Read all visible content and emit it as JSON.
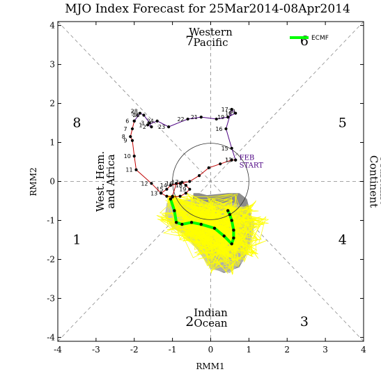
{
  "chart_data": {
    "type": "line",
    "title": "MJO Index Forecast for 25Mar2014-08Apr2014",
    "xlabel": "RMM1",
    "ylabel": "RMM2",
    "xlim": [
      -4,
      4
    ],
    "ylim": [
      -4.1,
      4.1
    ],
    "x_ticks": [
      "-4",
      "-3",
      "-2",
      "-1",
      "0",
      "1",
      "2",
      "3",
      "4"
    ],
    "y_ticks": [
      "-4",
      "-3",
      "-2",
      "-1",
      "0",
      "1",
      "2",
      "3",
      "4"
    ],
    "phases": [
      {
        "label": "1",
        "x": -3.5,
        "y": -1.5
      },
      {
        "label": "2",
        "x": -0.55,
        "y": -3.6
      },
      {
        "label": "3",
        "x": 2.45,
        "y": -3.6
      },
      {
        "label": "4",
        "x": 3.45,
        "y": -1.5
      },
      {
        "label": "5",
        "x": 3.45,
        "y": 1.5
      },
      {
        "label": "6",
        "x": 2.45,
        "y": 3.6
      },
      {
        "label": "7",
        "x": -0.55,
        "y": 3.6
      },
      {
        "label": "8",
        "x": -3.5,
        "y": 1.5
      }
    ],
    "regions": [
      {
        "lines": [
          "Western",
          "Pacific"
        ],
        "x": 0.0,
        "y": 3.7,
        "rotate": 0
      },
      {
        "lines": [
          "Indian",
          "Ocean"
        ],
        "x": 0.0,
        "y": -3.5,
        "rotate": 0
      },
      {
        "lines": [
          "West. Hem.",
          "and Africa"
        ],
        "x": -2.75,
        "y": 0.0,
        "rotate": -90
      },
      {
        "lines": [
          "Maritime",
          "Continent"
        ],
        "x": 4.4,
        "y": 0.0,
        "rotate": 90
      }
    ],
    "observed_segments": [
      {
        "color": "#c00000",
        "points": [
          {
            "x": 0.65,
            "y": 0.55,
            "label": "13"
          },
          {
            "x": 0.55,
            "y": 0.55
          },
          {
            "x": 0.25,
            "y": 0.45
          },
          {
            "x": -0.05,
            "y": 0.35
          },
          {
            "x": -0.3,
            "y": 0.15
          },
          {
            "x": -0.55,
            "y": 0.0
          },
          {
            "x": -0.8,
            "y": -0.05
          },
          {
            "x": -1.05,
            "y": -0.1,
            "label": "14"
          },
          {
            "x": -1.15,
            "y": -0.2,
            "label": "15"
          },
          {
            "x": -1.3,
            "y": -0.3,
            "label": "13"
          },
          {
            "x": -1.15,
            "y": -0.38
          },
          {
            "x": -1.0,
            "y": -0.4
          },
          {
            "x": -0.8,
            "y": -0.38
          },
          {
            "x": -0.65,
            "y": -0.3
          },
          {
            "x": -0.55,
            "y": -0.2,
            "label": "19"
          },
          {
            "x": -0.65,
            "y": -0.1,
            "label": "18"
          },
          {
            "x": -0.75,
            "y": -0.02,
            "label": "17"
          },
          {
            "x": -0.9,
            "y": -0.05,
            "label": "16"
          },
          {
            "x": -1.0,
            "y": -0.38
          }
        ]
      },
      {
        "color": "#c00000",
        "points": [
          {
            "x": -1.3,
            "y": -0.3
          },
          {
            "x": -1.55,
            "y": -0.05,
            "label": "12"
          },
          {
            "x": -1.95,
            "y": 0.3,
            "label": "11"
          },
          {
            "x": -2.0,
            "y": 0.65,
            "label": "10"
          },
          {
            "x": -2.05,
            "y": 1.05,
            "label": "9"
          },
          {
            "x": -2.1,
            "y": 1.15,
            "label": "8"
          },
          {
            "x": -2.05,
            "y": 1.35,
            "label": "7"
          },
          {
            "x": -2.0,
            "y": 1.55,
            "label": "6"
          }
        ]
      },
      {
        "color": "#4b0082",
        "points": [
          {
            "x": -2.0,
            "y": 1.55
          },
          {
            "x": -1.85,
            "y": 1.75,
            "label": "5"
          },
          {
            "x": -1.75,
            "y": 1.7,
            "label": "4"
          },
          {
            "x": -1.6,
            "y": 1.5,
            "label": "3"
          },
          {
            "x": -1.55,
            "y": 1.4,
            "label": "2"
          },
          {
            "x": -1.65,
            "y": 1.45,
            "label": "1"
          },
          {
            "x": -1.4,
            "y": 1.55,
            "label": "24"
          },
          {
            "x": -1.1,
            "y": 1.4,
            "label": "23"
          },
          {
            "x": -0.6,
            "y": 1.6,
            "label": "22"
          },
          {
            "x": -0.25,
            "y": 1.65,
            "label": "21"
          },
          {
            "x": 0.15,
            "y": 1.6
          },
          {
            "x": 0.45,
            "y": 1.65,
            "label": "19"
          },
          {
            "x": 0.65,
            "y": 1.75,
            "label": "18"
          },
          {
            "x": 0.55,
            "y": 1.85,
            "label": "17"
          },
          {
            "x": 0.4,
            "y": 1.35,
            "label": "16"
          },
          {
            "x": 0.55,
            "y": 0.85,
            "label": "15"
          },
          {
            "x": 0.65,
            "y": 0.55,
            "label": "13"
          }
        ]
      }
    ],
    "observed_label_extra": [
      {
        "x": -2.0,
        "y": 1.75,
        "label": "28"
      },
      {
        "x": -1.95,
        "y": 1.65,
        "label": "26"
      },
      {
        "x": 0.55,
        "y": 1.75,
        "label": "20"
      }
    ],
    "feb_start": {
      "lines": [
        "FEB",
        "START"
      ],
      "x": 0.75,
      "y": 0.55
    },
    "ensemble_mean": {
      "name": "ECMF",
      "color": "#00ff00",
      "points": [
        {
          "x": -1.05,
          "y": -0.45
        },
        {
          "x": -0.95,
          "y": -0.75
        },
        {
          "x": -0.9,
          "y": -1.05
        },
        {
          "x": -0.75,
          "y": -1.1
        },
        {
          "x": -0.5,
          "y": -1.05
        },
        {
          "x": -0.25,
          "y": -1.1
        },
        {
          "x": 0.1,
          "y": -1.2
        },
        {
          "x": 0.35,
          "y": -1.4
        },
        {
          "x": 0.55,
          "y": -1.6
        },
        {
          "x": 0.6,
          "y": -1.45
        },
        {
          "x": 0.6,
          "y": -1.25
        },
        {
          "x": 0.55,
          "y": -1.0
        },
        {
          "x": 0.5,
          "y": -0.85
        },
        {
          "x": 0.45,
          "y": -0.75
        }
      ]
    },
    "spread_dark": [
      [
        -0.45,
        -0.3
      ],
      [
        -0.3,
        -0.3
      ],
      [
        -0.1,
        -0.35
      ],
      [
        0.45,
        -0.3
      ],
      [
        0.75,
        -0.3
      ],
      [
        0.95,
        -0.45
      ],
      [
        1.05,
        -0.85
      ],
      [
        1.05,
        -1.4
      ],
      [
        0.95,
        -1.85
      ],
      [
        0.75,
        -2.2
      ],
      [
        0.35,
        -2.35
      ],
      [
        0.0,
        -2.2
      ],
      [
        -0.1,
        -1.8
      ],
      [
        -0.35,
        -1.5
      ],
      [
        -0.45,
        -1.1
      ],
      [
        -0.5,
        -0.7
      ]
    ],
    "spread_light": [
      [
        -1.15,
        -0.55
      ],
      [
        -0.85,
        -0.5
      ],
      [
        -0.5,
        -0.45
      ],
      [
        0.0,
        -0.55
      ],
      [
        0.6,
        -0.55
      ],
      [
        1.0,
        -0.7
      ],
      [
        1.15,
        -1.1
      ],
      [
        1.05,
        -1.6
      ],
      [
        0.85,
        -2.05
      ],
      [
        0.5,
        -2.35
      ],
      [
        0.0,
        -2.25
      ],
      [
        -0.35,
        -1.75
      ],
      [
        -0.7,
        -1.35
      ],
      [
        -1.0,
        -1.2
      ],
      [
        -1.2,
        -0.9
      ]
    ],
    "yellow_envelope": [
      [
        -1.3,
        -0.45
      ],
      [
        -0.6,
        -0.35
      ],
      [
        0.0,
        -0.4
      ],
      [
        0.7,
        -0.35
      ],
      [
        1.2,
        -0.6
      ],
      [
        1.45,
        -1.0
      ],
      [
        1.4,
        -1.5
      ],
      [
        1.2,
        -1.9
      ],
      [
        0.85,
        -2.15
      ],
      [
        0.5,
        -2.35
      ],
      [
        0.0,
        -2.25
      ],
      [
        -0.4,
        -1.9
      ],
      [
        -0.8,
        -1.5
      ],
      [
        -1.15,
        -1.2
      ],
      [
        -1.35,
        -0.85
      ]
    ],
    "grid": false,
    "legend_position": "top-right"
  }
}
